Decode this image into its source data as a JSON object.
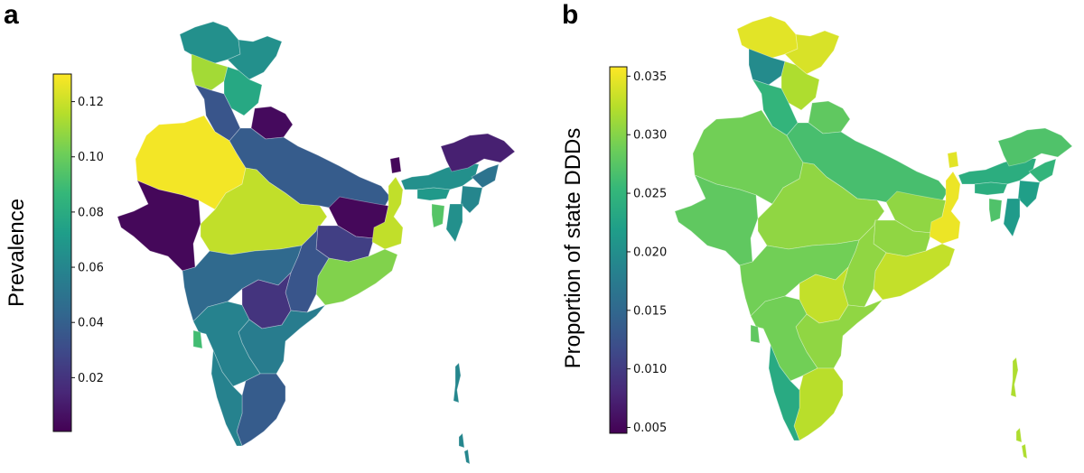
{
  "figure": {
    "panels": [
      {
        "letter": "a",
        "colorbar": {
          "title": "Prevalence",
          "vmin": 0.0005,
          "vmax": 0.13,
          "ticks": [
            0.02,
            0.04,
            0.06,
            0.08,
            0.1,
            0.12
          ],
          "tick_labels": [
            "0.02",
            "0.04",
            "0.06",
            "0.08",
            "0.10",
            "0.12"
          ]
        },
        "regions": [
          {
            "name": "jammu-kashmir-region",
            "value": 0.065
          },
          {
            "name": "ladakh-region",
            "value": 0.065
          },
          {
            "name": "punjab-region",
            "value": 0.112
          },
          {
            "name": "himachal-region",
            "value": 0.078
          },
          {
            "name": "haryana-region",
            "value": 0.035
          },
          {
            "name": "uttarakhand-region",
            "value": 0.004
          },
          {
            "name": "rajasthan-region",
            "value": 0.128
          },
          {
            "name": "gujarat-region",
            "value": 0.003
          },
          {
            "name": "uttar-pradesh-region",
            "value": 0.038
          },
          {
            "name": "bihar-region",
            "value": 0.003
          },
          {
            "name": "madhya-pradesh-region",
            "value": 0.118
          },
          {
            "name": "jharkhand-region",
            "value": 0.025
          },
          {
            "name": "west-bengal-region",
            "value": 0.118
          },
          {
            "name": "odisha-region",
            "value": 0.105
          },
          {
            "name": "chhattisgarh-region",
            "value": 0.035
          },
          {
            "name": "maharashtra-region",
            "value": 0.045
          },
          {
            "name": "telangana-region",
            "value": 0.02
          },
          {
            "name": "andhra-pradesh-region",
            "value": 0.055
          },
          {
            "name": "karnataka-region",
            "value": 0.058
          },
          {
            "name": "goa-region",
            "value": 0.09
          },
          {
            "name": "tamil-nadu-region",
            "value": 0.038
          },
          {
            "name": "kerala-region",
            "value": 0.058
          },
          {
            "name": "sikkim-region",
            "value": 0.003
          },
          {
            "name": "assam-region",
            "value": 0.065
          },
          {
            "name": "arunachal-region",
            "value": 0.012
          },
          {
            "name": "meghalaya-region",
            "value": 0.07
          },
          {
            "name": "nagaland-region",
            "value": 0.05
          },
          {
            "name": "manipur-region",
            "value": 0.06
          },
          {
            "name": "mizoram-region",
            "value": 0.065
          },
          {
            "name": "tripura-region",
            "value": 0.095
          },
          {
            "name": "andaman-region",
            "value": 0.06
          }
        ]
      },
      {
        "letter": "b",
        "colorbar": {
          "title": "Proportion of state DDDs",
          "vmin": 0.0045,
          "vmax": 0.0358,
          "ticks": [
            0.005,
            0.01,
            0.015,
            0.02,
            0.025,
            0.03,
            0.035
          ],
          "tick_labels": [
            "0.005",
            "0.010",
            "0.015",
            "0.020",
            "0.025",
            "0.030",
            "0.035"
          ]
        },
        "regions": [
          {
            "name": "jammu-kashmir-region",
            "value": 0.0345
          },
          {
            "name": "ladakh-region",
            "value": 0.034
          },
          {
            "name": "punjab-region",
            "value": 0.0195
          },
          {
            "name": "himachal-region",
            "value": 0.032
          },
          {
            "name": "haryana-region",
            "value": 0.025
          },
          {
            "name": "uttarakhand-region",
            "value": 0.028
          },
          {
            "name": "rajasthan-region",
            "value": 0.029
          },
          {
            "name": "gujarat-region",
            "value": 0.028
          },
          {
            "name": "uttar-pradesh-region",
            "value": 0.0265
          },
          {
            "name": "bihar-region",
            "value": 0.0305
          },
          {
            "name": "madhya-pradesh-region",
            "value": 0.0305
          },
          {
            "name": "jharkhand-region",
            "value": 0.0305
          },
          {
            "name": "west-bengal-region",
            "value": 0.035
          },
          {
            "name": "odisha-region",
            "value": 0.033
          },
          {
            "name": "chhattisgarh-region",
            "value": 0.0305
          },
          {
            "name": "maharashtra-region",
            "value": 0.029
          },
          {
            "name": "telangana-region",
            "value": 0.033
          },
          {
            "name": "andhra-pradesh-region",
            "value": 0.0305
          },
          {
            "name": "karnataka-region",
            "value": 0.029
          },
          {
            "name": "goa-region",
            "value": 0.028
          },
          {
            "name": "tamil-nadu-region",
            "value": 0.0325
          },
          {
            "name": "kerala-region",
            "value": 0.0235
          },
          {
            "name": "sikkim-region",
            "value": 0.0345
          },
          {
            "name": "assam-region",
            "value": 0.024
          },
          {
            "name": "arunachal-region",
            "value": 0.027
          },
          {
            "name": "meghalaya-region",
            "value": 0.024
          },
          {
            "name": "nagaland-region",
            "value": 0.025
          },
          {
            "name": "manipur-region",
            "value": 0.022
          },
          {
            "name": "mizoram-region",
            "value": 0.0215
          },
          {
            "name": "tripura-region",
            "value": 0.027
          },
          {
            "name": "andaman-region",
            "value": 0.032
          }
        ]
      }
    ]
  }
}
